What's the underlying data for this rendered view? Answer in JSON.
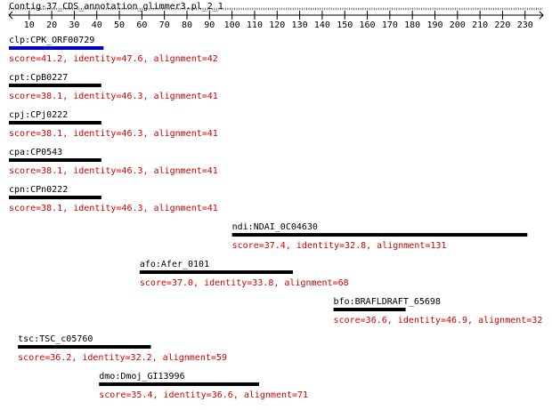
{
  "header": {
    "title": "Contig-37_CDS_annotation_glimmer3.pl_2_1"
  },
  "ruler": {
    "xlim": [
      1,
      238
    ],
    "xticks": [
      10,
      20,
      30,
      40,
      50,
      60,
      70,
      80,
      90,
      100,
      110,
      120,
      130,
      140,
      150,
      160,
      170,
      180,
      190,
      200,
      210,
      220,
      230
    ]
  },
  "hits": [
    {
      "label": "clp:CPK_ORF00729",
      "score": "score=41.2, identity=47.6, alignment=42",
      "start": 1,
      "end": 43,
      "color": "#0000cc"
    },
    {
      "label": "cpt:CpB0227",
      "score": "score=38.1, identity=46.3, alignment=41",
      "start": 1,
      "end": 42,
      "color": "#000000"
    },
    {
      "label": "cpj:CPj0222",
      "score": "score=38.1, identity=46.3, alignment=41",
      "start": 1,
      "end": 42,
      "color": "#000000"
    },
    {
      "label": "cpa:CP0543",
      "score": "score=38.1, identity=46.3, alignment=41",
      "start": 1,
      "end": 42,
      "color": "#000000"
    },
    {
      "label": "cpn:CPn0222",
      "score": "score=38.1, identity=46.3, alignment=41",
      "start": 1,
      "end": 42,
      "color": "#000000"
    },
    {
      "label": "ndi:NDAI_0C04630",
      "score": "score=37.4, identity=32.8, alignment=131",
      "start": 100,
      "end": 231,
      "color": "#000000"
    },
    {
      "label": "afo:Afer_0101",
      "score": "score=37.0, identity=33.8, alignment=68",
      "start": 59,
      "end": 127,
      "color": "#000000"
    },
    {
      "label": "bfo:BRAFLDRAFT_65698",
      "score": "score=36.6, identity=46.9, alignment=32",
      "start": 145,
      "end": 177,
      "color": "#000000"
    },
    {
      "label": "tsc:TSC_c05760",
      "score": "score=36.2, identity=32.2, alignment=59",
      "start": 5,
      "end": 64,
      "color": "#000000"
    },
    {
      "label": "dmo:Dmoj_GI13996",
      "score": "score=35.4, identity=36.6, alignment=71",
      "start": 41,
      "end": 112,
      "color": "#000000"
    }
  ]
}
